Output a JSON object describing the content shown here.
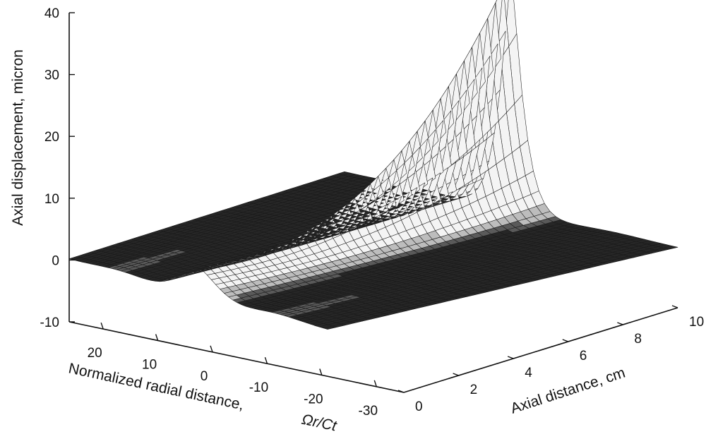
{
  "chart_data": {
    "type": "surface",
    "title": "",
    "zlabel": "Axial displacement, micron",
    "xlabel_text": "Normalized radial distance,",
    "xlabel_symbol": "Ωr/Ct",
    "ylabel": "Axial distance, cm",
    "zlim": [
      -10,
      40
    ],
    "xlim": [
      -30,
      30
    ],
    "ylim": [
      0,
      10
    ],
    "z_ticks": [
      "-10",
      "0",
      "10",
      "20",
      "30",
      "40"
    ],
    "x_ticks": [
      "20",
      "10",
      "0",
      "-10",
      "-20",
      "-30"
    ],
    "y_ticks": [
      "0",
      "2",
      "4",
      "6",
      "8",
      "10"
    ],
    "peak": {
      "x": 0,
      "y": 10,
      "z": 38
    },
    "description_series": [
      {
        "name": "surface",
        "x_range": [
          -30,
          30
        ],
        "y_range": [
          0,
          10
        ],
        "z_max": 38,
        "z_min": -2
      }
    ]
  }
}
